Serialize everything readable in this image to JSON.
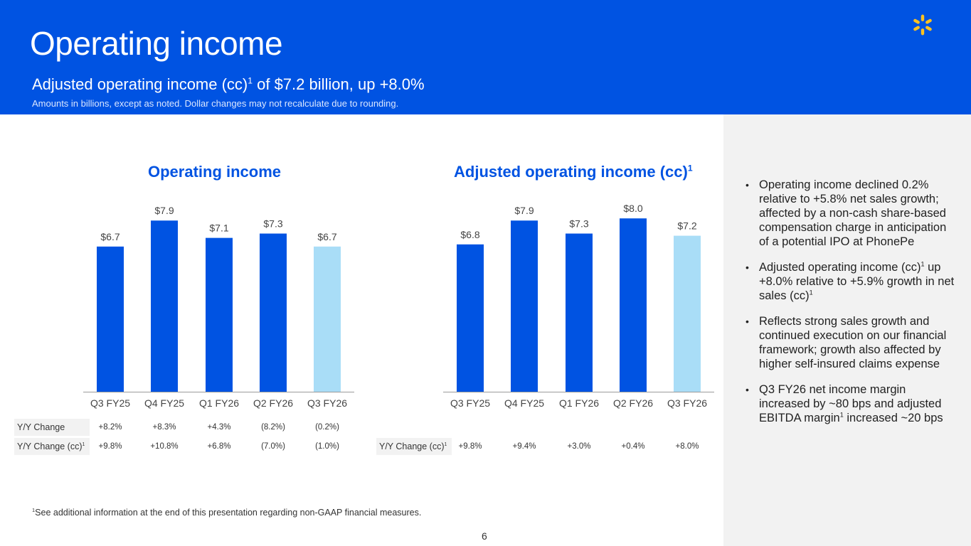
{
  "header": {
    "title": "Operating income",
    "subtitle_pre": "Adjusted operating income (cc)",
    "subtitle_sup": "1",
    "subtitle_post": " of $7.2 billion, up +8.0%",
    "note": "Amounts in billions, except as noted.  Dollar changes may not recalculate due to rounding."
  },
  "colors": {
    "brand_blue": "#0053e2",
    "current_quarter": "#a9ddf7",
    "header_bg": "#0053e2",
    "spark": "#ffc220"
  },
  "icons": {
    "logo": "walmart-spark-icon"
  },
  "chart_data": [
    {
      "type": "bar",
      "title": "Operating income",
      "title_sup": "",
      "categories": [
        "Q3 FY25",
        "Q4 FY25",
        "Q1 FY26",
        "Q2 FY26",
        "Q3 FY26"
      ],
      "values": [
        6.7,
        7.9,
        7.1,
        7.3,
        6.7
      ],
      "value_labels": [
        "$6.7",
        "$7.9",
        "$7.1",
        "$7.3",
        "$6.7"
      ],
      "highlight_last": true,
      "ylim": [
        0,
        8.4
      ],
      "grid": false,
      "table": [
        {
          "label": "Y/Y Change",
          "label_sup": "",
          "values": [
            "+8.2%",
            "+8.3%",
            "+4.3%",
            "(8.2%)",
            "(0.2%)"
          ]
        },
        {
          "label": "Y/Y Change (cc)",
          "label_sup": "1",
          "values": [
            "+9.8%",
            "+10.8%",
            "+6.8%",
            "(7.0%)",
            "(1.0%)"
          ]
        }
      ]
    },
    {
      "type": "bar",
      "title": "Adjusted operating income (cc)",
      "title_sup": "1",
      "categories": [
        "Q3 FY25",
        "Q4 FY25",
        "Q1 FY26",
        "Q2 FY26",
        "Q3 FY26"
      ],
      "values": [
        6.8,
        7.9,
        7.3,
        8.0,
        7.2
      ],
      "value_labels": [
        "$6.8",
        "$7.9",
        "$7.3",
        "$8.0",
        "$7.2"
      ],
      "highlight_last": true,
      "ylim": [
        0,
        8.4
      ],
      "grid": false,
      "table": [
        {
          "label": "Y/Y Change (cc)",
          "label_sup": "1",
          "values": [
            "+9.8%",
            "+9.4%",
            "+3.0%",
            "+0.4%",
            "+8.0%"
          ]
        }
      ]
    }
  ],
  "bullets": [
    {
      "pre": "Operating income declined 0.2% relative to +5.8% net sales growth; affected by a non-cash share-based compensation charge in anticipation of a potential IPO at PhonePe",
      "sup1": "",
      "mid": "",
      "sup2": ""
    },
    {
      "pre": "Adjusted operating income (cc)",
      "sup1": "1",
      "mid": " up +8.0% relative to +5.9% growth in net sales (cc)",
      "sup2": "1"
    },
    {
      "pre": "Reflects strong sales growth and continued execution on our financial framework; growth also affected by higher self-insured claims expense",
      "sup1": "",
      "mid": "",
      "sup2": ""
    },
    {
      "pre": "Q3 FY26 net income margin increased by ~80 bps and adjusted EBITDA margin",
      "sup1": "1",
      "mid": " increased ~20 bps",
      "sup2": ""
    }
  ],
  "footnote": {
    "sup": "1",
    "text": "See additional information at the end of this presentation regarding non-GAAP financial measures."
  },
  "page_number": "6"
}
